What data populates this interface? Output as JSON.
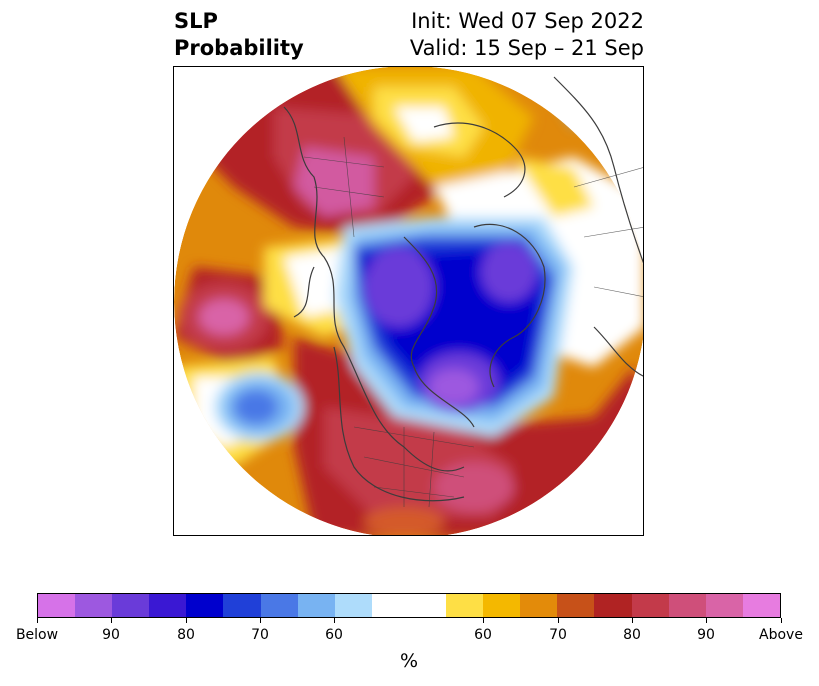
{
  "header": {
    "left_line1": "SLP",
    "left_line2": "Probability",
    "right_line1": "Init: Wed 07 Sep 2022",
    "right_line2": "Valid: 15 Sep – 21 Sep"
  },
  "map": {
    "projection": "north-polar-stereographic",
    "field": "SLP probability"
  },
  "colorbar": {
    "colors": [
      "#d672e8",
      "#9d58e0",
      "#6a3bd9",
      "#3a18d3",
      "#0000cd",
      "#2040d8",
      "#4a78e6",
      "#78b3f2",
      "#aedcfb",
      "#ffffff",
      "#ffffff",
      "#fedf45",
      "#f4b800",
      "#e38b0a",
      "#c75119",
      "#b02323",
      "#c33a4a",
      "#cf4f7a",
      "#d964a7",
      "#e77ce0"
    ],
    "labels": [
      "Below",
      "90",
      "80",
      "70",
      "60",
      "60",
      "70",
      "80",
      "90",
      "Above"
    ],
    "unit": "%"
  }
}
